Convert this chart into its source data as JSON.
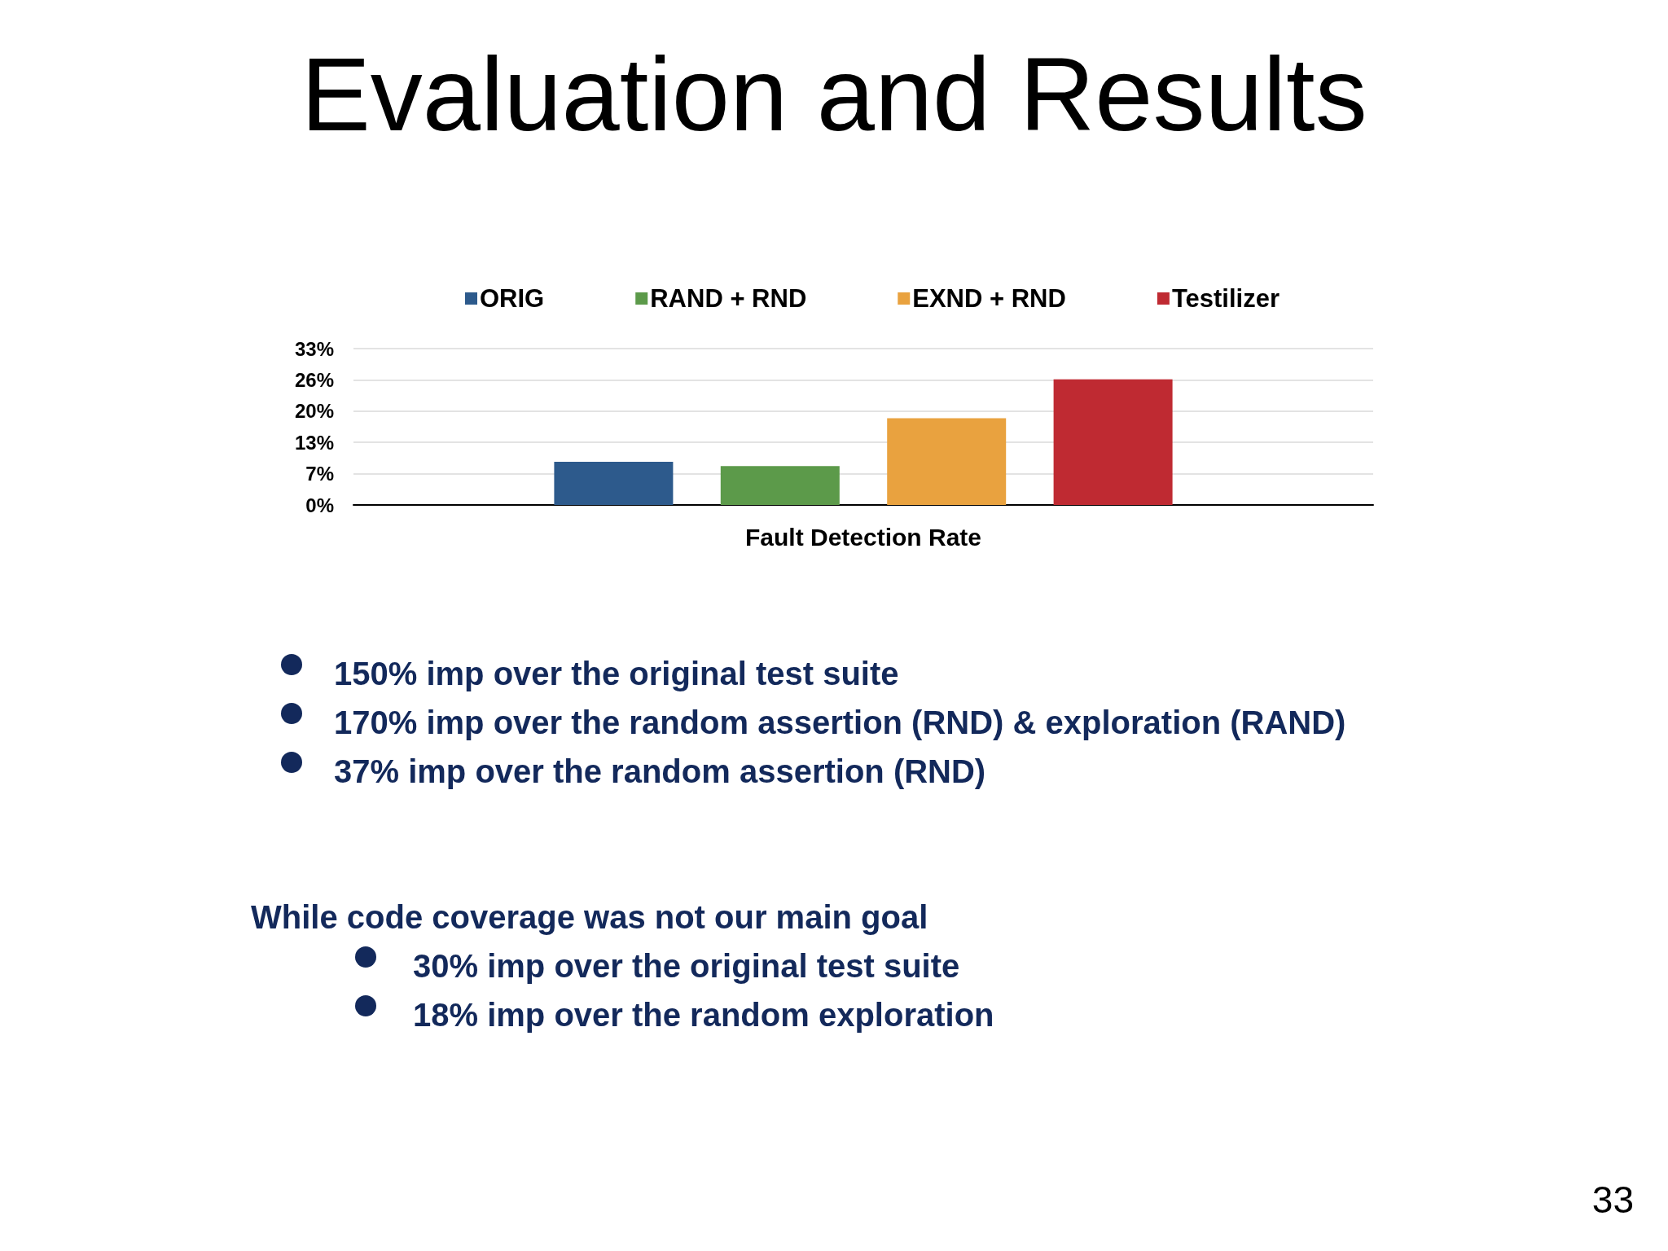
{
  "chart_data": {
    "type": "bar",
    "title": "Evaluation and Results",
    "categories": [
      "Fault Detection Rate"
    ],
    "series": [
      {
        "name": "ORIG",
        "color": "#2d5a8c",
        "values": [
          9.1
        ]
      },
      {
        "name": "RAND + RND",
        "color": "#5c9a4a",
        "values": [
          8.2
        ]
      },
      {
        "name": "EXND + RND",
        "color": "#e9a23f",
        "values": [
          18.3
        ]
      },
      {
        "name": "Testilizer",
        "color": "#bf2a32",
        "values": [
          26.5
        ]
      }
    ],
    "ylim": [
      0,
      33
    ],
    "yticks": [
      {
        "value": 0,
        "label": "0%"
      },
      {
        "value": 6.6,
        "label": "7%"
      },
      {
        "value": 13.2,
        "label": "13%"
      },
      {
        "value": 19.8,
        "label": "20%"
      },
      {
        "value": 26.4,
        "label": "26%"
      },
      {
        "value": 33,
        "label": "33%"
      }
    ],
    "grid": "y",
    "legend": "top",
    "annotations": [
      "150% imp over the original test suite",
      "170% imp over the random assertion (RND) & exploration (RAND)",
      "37% imp over the random assertion (RND)",
      "While code coverage was not our main goal",
      "30% imp over the original test suite",
      "18% imp over the random exploration",
      "33"
    ]
  }
}
